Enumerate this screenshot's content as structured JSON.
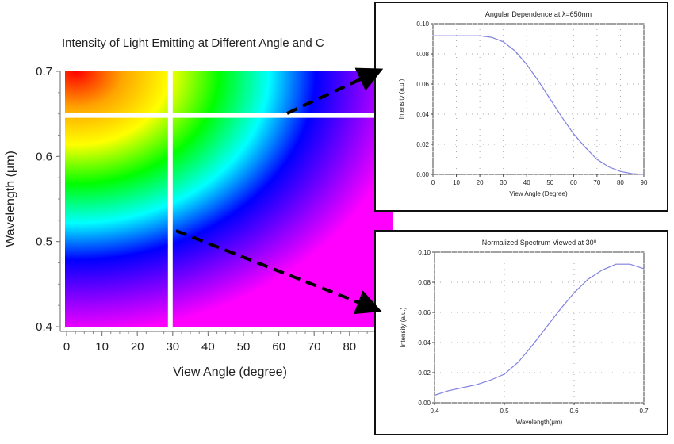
{
  "chart_data": [
    {
      "type": "heatmap",
      "title": "Intensity of Light Emitting at Different Angle and C",
      "xlabel": "View Angle (degree)",
      "ylabel": "Wavelength (μm)",
      "xlim": [
        0,
        90
      ],
      "ylim": [
        0.4,
        0.7
      ],
      "xticks": [
        0,
        10,
        20,
        30,
        40,
        50,
        60,
        70,
        80
      ],
      "yticks": [
        0.4,
        0.5,
        0.6,
        0.7
      ],
      "colormap": [
        "#ff0000",
        "#ffa500",
        "#ffff00",
        "#00ff00",
        "#00ffff",
        "#0000ff",
        "#8000ff",
        "#ff00ff"
      ],
      "markers": {
        "view_angle": 30,
        "wavelength": 0.65
      }
    },
    {
      "type": "line",
      "title": "Angular Dependence at λ=650nm",
      "xlabel": "View Angle (Degree)",
      "ylabel": "Intensity (a.u.)",
      "xlim": [
        0,
        90
      ],
      "ylim": [
        0,
        0.1
      ],
      "xticks": [
        0,
        10,
        20,
        30,
        40,
        50,
        60,
        70,
        80,
        90
      ],
      "yticks": [
        0.0,
        0.02,
        0.04,
        0.06,
        0.08,
        0.1
      ],
      "line_color": "#8080e0",
      "x": [
        0,
        10,
        20,
        25,
        30,
        35,
        40,
        45,
        50,
        55,
        60,
        65,
        70,
        75,
        80,
        85,
        90
      ],
      "y": [
        0.092,
        0.092,
        0.092,
        0.091,
        0.088,
        0.082,
        0.073,
        0.062,
        0.05,
        0.038,
        0.027,
        0.018,
        0.01,
        0.005,
        0.002,
        0.0005,
        0.0
      ]
    },
    {
      "type": "line",
      "title": "Normalized Spectrum Viewed at 30⁰",
      "xlabel": "Wavelength(μm)",
      "ylabel": "Intensity (a.u.)",
      "xlim": [
        0.4,
        0.7
      ],
      "ylim": [
        0,
        0.1
      ],
      "xticks": [
        0.4,
        0.5,
        0.6,
        0.7
      ],
      "yticks": [
        0.0,
        0.02,
        0.04,
        0.06,
        0.08,
        0.1
      ],
      "line_color": "#8080e0",
      "x": [
        0.4,
        0.42,
        0.44,
        0.46,
        0.48,
        0.5,
        0.52,
        0.54,
        0.56,
        0.58,
        0.6,
        0.62,
        0.64,
        0.66,
        0.68,
        0.7
      ],
      "y": [
        0.005,
        0.008,
        0.01,
        0.012,
        0.015,
        0.019,
        0.027,
        0.038,
        0.05,
        0.062,
        0.073,
        0.082,
        0.088,
        0.092,
        0.092,
        0.089
      ]
    }
  ]
}
